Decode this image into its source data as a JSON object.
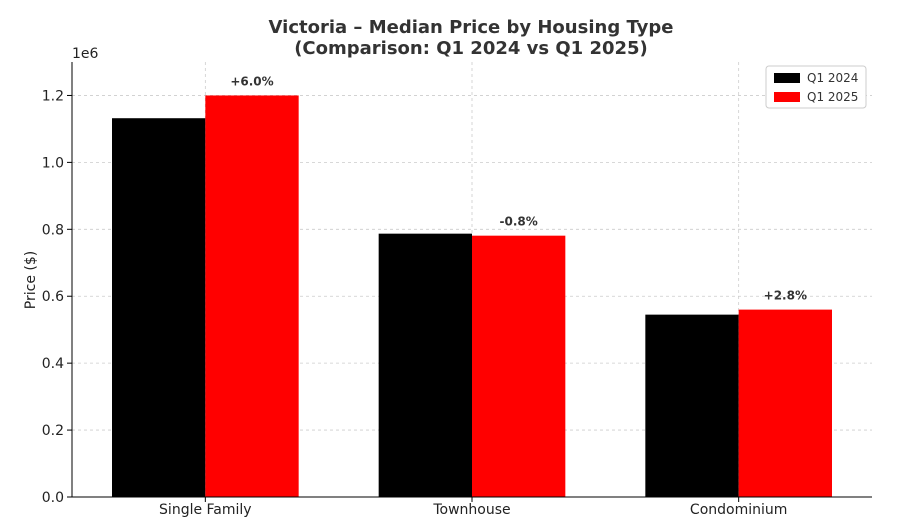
{
  "chart_data": {
    "type": "bar",
    "title": "Victoria – Median Price by Housing Type",
    "subtitle": "(Comparison: Q1 2024 vs Q1 2025)",
    "xlabel": "",
    "ylabel": "Price ($)",
    "y_offset_label": "1e6",
    "ylim": [
      0,
      1300000
    ],
    "yticks": [
      0,
      200000,
      400000,
      600000,
      800000,
      1000000,
      1200000
    ],
    "ytick_labels": [
      "0.0",
      "0.2",
      "0.4",
      "0.6",
      "0.8",
      "1.0",
      "1.2"
    ],
    "categories": [
      "Single Family",
      "Townhouse",
      "Condominium"
    ],
    "series": [
      {
        "name": "Q1 2024",
        "color": "#000000",
        "values": [
          1132000,
          787000,
          545000
        ]
      },
      {
        "name": "Q1 2025",
        "color": "#ff0000",
        "values": [
          1200000,
          781000,
          560000
        ]
      }
    ],
    "annotations": [
      "+6.0%",
      "-0.8%",
      "+2.8%"
    ],
    "grid": true,
    "legend_position": "top-right"
  }
}
